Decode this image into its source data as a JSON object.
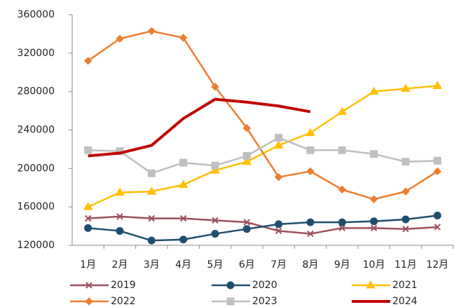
{
  "chart_data": {
    "type": "line",
    "categories": [
      "1月",
      "2月",
      "3月",
      "4月",
      "5月",
      "6月",
      "7月",
      "8月",
      "9月",
      "10月",
      "11月",
      "12月"
    ],
    "series": [
      {
        "name": "2019",
        "color": "#9c4f5e",
        "marker": "x",
        "values": [
          148000,
          150000,
          148000,
          148000,
          146000,
          144000,
          135000,
          132000,
          138000,
          138000,
          137000,
          139000
        ]
      },
      {
        "name": "2020",
        "color": "#1f4e6e",
        "marker": "circle",
        "values": [
          138000,
          135000,
          125000,
          126000,
          132000,
          137000,
          142000,
          144000,
          144000,
          145000,
          147000,
          151000
        ]
      },
      {
        "name": "2021",
        "color": "#ffc000",
        "marker": "triangle",
        "values": [
          160000,
          175000,
          176000,
          183000,
          198000,
          207000,
          224000,
          237000,
          259000,
          280000,
          283000,
          286000
        ]
      },
      {
        "name": "2022",
        "color": "#ed7d31",
        "marker": "diamond",
        "values": [
          312000,
          335000,
          343000,
          336000,
          285000,
          242000,
          191000,
          197000,
          178000,
          168000,
          176000,
          197000
        ]
      },
      {
        "name": "2023",
        "color": "#bfbfbf",
        "marker": "square",
        "values": [
          219000,
          218000,
          195000,
          206000,
          203000,
          213000,
          232000,
          219000,
          219000,
          215000,
          207000,
          208000
        ]
      },
      {
        "name": "2024",
        "color": "#c00000",
        "marker": "none",
        "values": [
          213000,
          216000,
          224000,
          252000,
          272000,
          269000,
          265000,
          259000,
          null,
          null,
          null,
          null
        ]
      }
    ],
    "ylim": [
      120000,
      360000
    ],
    "yticks": [
      120000,
      160000,
      200000,
      240000,
      280000,
      320000,
      360000
    ],
    "grid": false,
    "legend": "bottom"
  }
}
